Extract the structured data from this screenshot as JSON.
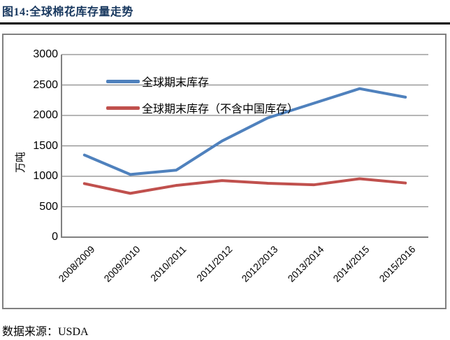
{
  "page": {
    "title": "图14:全球棉花库存量走势",
    "source_note": "数据来源：USDA"
  },
  "chart_data": {
    "type": "line",
    "title": "图14:全球棉花库存量走势",
    "xlabel": "",
    "ylabel": "万吨",
    "ylim": [
      0,
      3000
    ],
    "yticks": [
      0,
      500,
      1000,
      1500,
      2000,
      2500,
      3000
    ],
    "grid": true,
    "legend_position": "inside-top-left",
    "categories": [
      "2008/2009",
      "2009/2010",
      "2010/2011",
      "2011/2012",
      "2012/2013",
      "2013/2014",
      "2014/2015",
      "2015/2016"
    ],
    "series": [
      {
        "name": "全球期末库存",
        "color": "#4F81BD",
        "values": [
          1350,
          1030,
          1100,
          1580,
          1960,
          2200,
          2440,
          2300
        ]
      },
      {
        "name": "全球期末库存（不含中国库存）",
        "color": "#C0504D",
        "values": [
          880,
          720,
          850,
          930,
          885,
          860,
          960,
          890
        ]
      }
    ]
  },
  "colors": {
    "title_text": "#17375E",
    "title_rule": "#000000",
    "frame_border": "#808080",
    "gridline": "#8A8A8A",
    "axis_line": "#808080",
    "label_text": "#000000"
  }
}
